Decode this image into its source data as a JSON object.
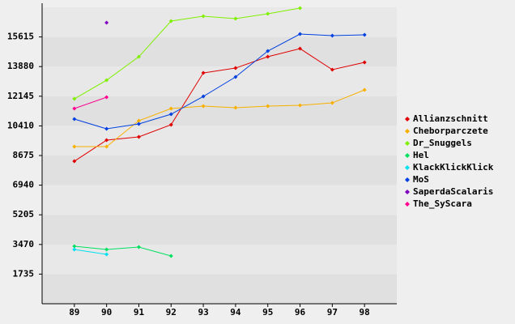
{
  "chart_data": {
    "type": "line",
    "x": [
      89,
      90,
      91,
      92,
      93,
      94,
      95,
      96,
      97,
      98
    ],
    "xlim": [
      88,
      99
    ],
    "xticks": [
      89,
      90,
      91,
      92,
      93,
      94,
      95,
      96,
      97,
      98
    ],
    "ylim": [
      0,
      17350
    ],
    "yticks": [
      1735,
      3470,
      5205,
      6940,
      8675,
      10410,
      12145,
      13880,
      15615
    ],
    "grid": true,
    "legend": "right",
    "series": [
      {
        "name": "Allianzschnitt",
        "color": "#e00000",
        "values": [
          8342,
          9575,
          9764,
          10475,
          13509,
          13793,
          14457,
          14931,
          13699,
          14125
        ]
      },
      {
        "name": "Cheborparczete",
        "color": "#f8b000",
        "values": [
          9196,
          9196,
          10712,
          11423,
          11566,
          11471,
          11566,
          11613,
          11755,
          12514
        ]
      },
      {
        "name": "Dr_Snuggels",
        "color": "#80f000",
        "values": [
          11992,
          13082,
          14457,
          16543,
          16827,
          16685,
          16969,
          17301,
          null,
          null
        ]
      },
      {
        "name": "Hel",
        "color": "#00e060",
        "values": [
          3365,
          3176,
          3318,
          2797,
          null,
          null,
          null,
          null,
          null,
          null
        ]
      },
      {
        "name": "KlackKlickKlick",
        "color": "#00e0f0",
        "values": [
          3176,
          2891,
          null,
          null,
          null,
          null,
          null,
          null,
          null,
          null
        ]
      },
      {
        "name": "MoS",
        "color": "#0040e0",
        "values": [
          10807,
          10238,
          10523,
          11092,
          12134,
          13272,
          14789,
          15784,
          15689,
          15737
        ]
      },
      {
        "name": "SaperdaScalaris",
        "color": "#8000c0",
        "values": [
          null,
          16448,
          null,
          null,
          null,
          null,
          null,
          null,
          null,
          null
        ]
      },
      {
        "name": "The_SyScara",
        "color": "#ff0090",
        "values": [
          11423,
          12087,
          null,
          null,
          null,
          null,
          null,
          null,
          null,
          null
        ]
      }
    ]
  }
}
